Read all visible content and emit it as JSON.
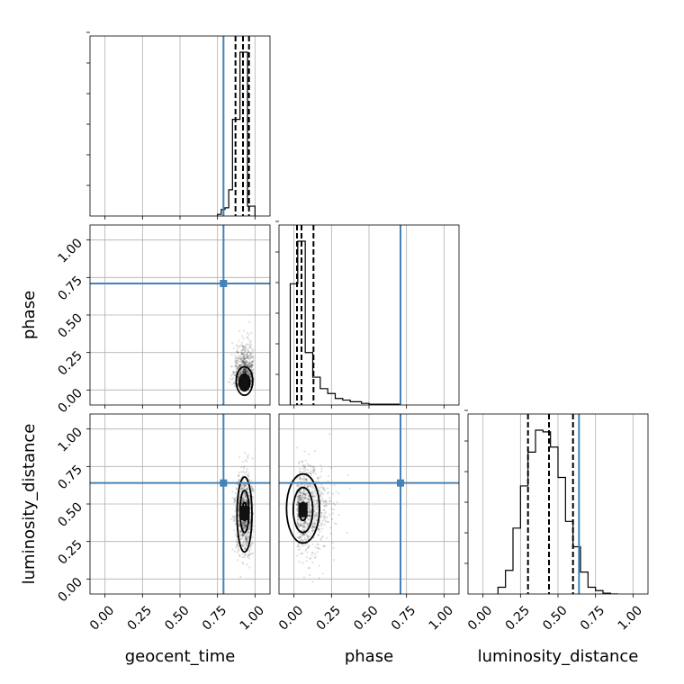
{
  "chart_data": {
    "type": "corner",
    "parameters": [
      "geocent_time",
      "phase",
      "luminosity_distance"
    ],
    "axis_range": [
      -0.1,
      1.1
    ],
    "ticks": [
      0.0,
      0.25,
      0.5,
      0.75,
      1.0
    ],
    "tick_labels": [
      "0.00",
      "0.25",
      "0.50",
      "0.75",
      "1.00"
    ],
    "truths": {
      "geocent_time": 0.79,
      "phase": 0.71,
      "luminosity_distance": 0.64
    },
    "truth_color": "#4682b4",
    "grid": true,
    "histograms": {
      "geocent_time": {
        "bin_edges": [
          0.75,
          0.775,
          0.8,
          0.825,
          0.85,
          0.875,
          0.9,
          0.925,
          0.95,
          0.975,
          1.0
        ],
        "counts": [
          0.01,
          0.04,
          0.05,
          0.16,
          0.59,
          0.59,
          1.0,
          1.0,
          0.06,
          0.06
        ],
        "quantiles": [
          0.87,
          0.92,
          0.96
        ]
      },
      "phase": {
        "bin_edges": [
          -0.025,
          0.0,
          0.025,
          0.05,
          0.075,
          0.1,
          0.125,
          0.15,
          0.175,
          0.2,
          0.225,
          0.25,
          0.275,
          0.3,
          0.325,
          0.35,
          0.375,
          0.4,
          0.45,
          0.5,
          0.55,
          0.6,
          0.65,
          0.7
        ],
        "counts": [
          0.74,
          0.74,
          1.0,
          1.0,
          0.32,
          0.32,
          0.17,
          0.17,
          0.1,
          0.1,
          0.07,
          0.07,
          0.04,
          0.04,
          0.03,
          0.03,
          0.02,
          0.02,
          0.01,
          0.005,
          0.005,
          0.005,
          0.005
        ],
        "quantiles": [
          0.02,
          0.05,
          0.13
        ]
      },
      "luminosity_distance": {
        "bin_edges": [
          0.1,
          0.15,
          0.2,
          0.25,
          0.3,
          0.35,
          0.4,
          0.45,
          0.5,
          0.55,
          0.6,
          0.65,
          0.7,
          0.75,
          0.8,
          0.85,
          0.9
        ],
        "counts": [
          0.04,
          0.14,
          0.39,
          0.64,
          0.84,
          0.97,
          0.96,
          0.87,
          0.69,
          0.43,
          0.28,
          0.13,
          0.04,
          0.02,
          0.005,
          0.0
        ],
        "quantiles": [
          0.3,
          0.44,
          0.6
        ]
      }
    },
    "scatter_2d": [
      {
        "x": "geocent_time",
        "y": "phase",
        "center": [
          0.93,
          0.05
        ],
        "spread": [
          0.035,
          0.12
        ],
        "contours": [
          {
            "level": "outer",
            "rx": 0.055,
            "ry": 0.095,
            "cy": 0.06
          },
          {
            "level": "middle",
            "rx": 0.035,
            "ry": 0.055,
            "cy": 0.05
          },
          {
            "level": "inner",
            "rx": 0.015,
            "ry": 0.022,
            "cy": 0.05
          }
        ]
      },
      {
        "x": "geocent_time",
        "y": "luminosity_distance",
        "center": [
          0.93,
          0.44
        ],
        "spread": [
          0.03,
          0.14
        ],
        "contours": [
          {
            "level": "outer",
            "rx": 0.05,
            "ry": 0.25,
            "cy": 0.43
          },
          {
            "level": "middle",
            "rx": 0.03,
            "ry": 0.14,
            "cy": 0.45
          },
          {
            "level": "inner",
            "rx": 0.013,
            "ry": 0.06,
            "cy": 0.45
          }
        ]
      },
      {
        "x": "phase",
        "y": "luminosity_distance",
        "center": [
          0.06,
          0.46
        ],
        "spread": [
          0.1,
          0.14
        ],
        "contours": [
          {
            "level": "outer",
            "rx": 0.11,
            "ry": 0.23,
            "cy": 0.47
          },
          {
            "level": "middle",
            "rx": 0.065,
            "ry": 0.15,
            "cy": 0.46
          },
          {
            "level": "inner",
            "rx": 0.025,
            "ry": 0.06,
            "cy": 0.45
          }
        ]
      }
    ]
  }
}
